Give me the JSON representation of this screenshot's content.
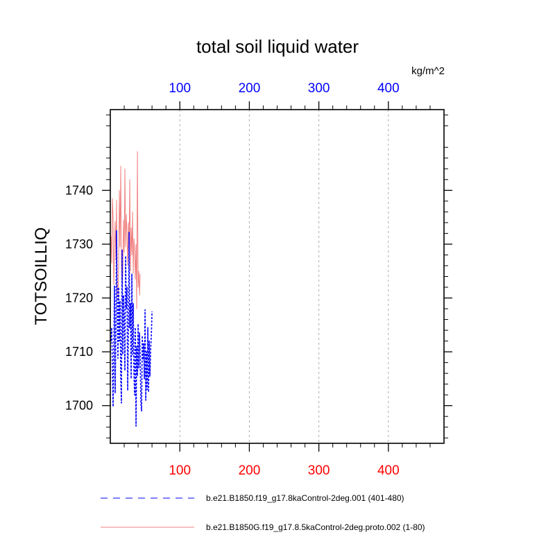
{
  "chart_data": {
    "type": "line",
    "title": "total soil liquid water",
    "units": "kg/m^2",
    "ylabel": "TOTSOILLIQ",
    "xlim": [
      0,
      480
    ],
    "ylim": [
      1693,
      1755
    ],
    "x_ticks": [
      100,
      200,
      300,
      400
    ],
    "y_ticks": [
      1700,
      1710,
      1720,
      1730,
      1740
    ],
    "top_axis_color": "#0000ff",
    "bottom_axis_color": "#ff0000",
    "grid": "vertical dashed at x ticks",
    "legend_position": "bottom",
    "series": [
      {
        "name": "b.e21.B1850.f19_g17.8kaControl-2deg.001 (401-480)",
        "color": "#0000ff",
        "style": "dashed",
        "x_start": 1,
        "values": [
          1712.0,
          1714.5,
          1707.2,
          1699.8,
          1708.5,
          1722.3,
          1702.3,
          1713.6,
          1732.5,
          1718.0,
          1708.8,
          1722.0,
          1712.0,
          1719.5,
          1705.5,
          1700.5,
          1729.0,
          1709.5,
          1720.5,
          1716.0,
          1706.5,
          1727.8,
          1718.0,
          1722.0,
          1702.8,
          1713.8,
          1732.2,
          1714.5,
          1719.0,
          1705.0,
          1724.5,
          1709.5,
          1719.0,
          1706.0,
          1702.0,
          1714.5,
          1696.2,
          1711.0,
          1705.5,
          1715.2,
          1707.0,
          1713.5,
          1709.0,
          1700.5,
          1699.0,
          1713.0,
          1708.5,
          1711.5,
          1705.0,
          1717.8,
          1701.0,
          1710.0,
          1703.0,
          1714.5,
          1702.5,
          1712.0,
          1705.5,
          1710.5,
          1713.0,
          1717.5
        ]
      },
      {
        "name": "b.e21.B1850G.f19_g17.8.5kaControl-2deg.proto.002 (1-80)",
        "color": "#f08080",
        "style": "solid",
        "x_start": 1,
        "values": [
          1731.5,
          1726.5,
          1738.5,
          1735.0,
          1722.5,
          1729.0,
          1734.2,
          1727.0,
          1738.2,
          1722.5,
          1720.0,
          1725.5,
          1740.0,
          1729.5,
          1744.5,
          1726.0,
          1722.0,
          1724.5,
          1734.5,
          1728.5,
          1744.0,
          1729.5,
          1735.5,
          1731.5,
          1726.0,
          1734.0,
          1729.0,
          1742.0,
          1725.0,
          1733.0,
          1728.0,
          1736.0,
          1724.5,
          1731.0,
          1729.0,
          1723.5,
          1730.0,
          1718.0,
          1747.2,
          1722.0,
          1725.0,
          1720.5,
          1724.5
        ]
      }
    ]
  }
}
